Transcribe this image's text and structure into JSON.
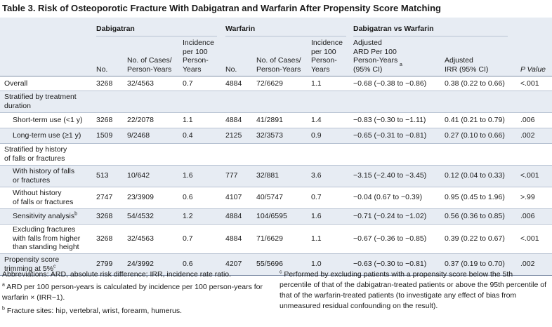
{
  "title": "Table 3. Risk of Osteoporotic Fracture With Dabigatran and Warfarin After Propensity Score Matching",
  "groups": {
    "dabigatran": "Dabigatran",
    "warfarin": "Warfarin",
    "comparison": "Dabigatran vs Warfarin"
  },
  "columns": {
    "no": "No.",
    "cases": "No. of Cases/\nPerson-Years",
    "incidence": "Incidence\nper 100\nPerson-\nYears",
    "ard": "Adjusted\nARD Per 100\nPerson-Years\n(95% CI)",
    "ard_sup": "a",
    "irr": "Adjusted\nIRR (95% CI)",
    "p_value": "P Value"
  },
  "rows": [
    {
      "kind": "data",
      "label": "Overall",
      "d_no": "3268",
      "d_cases": "32/4563",
      "d_inc": "0.7",
      "w_no": "4884",
      "w_cases": "72/6629",
      "w_inc": "1.1",
      "ard": "−0.68 (−0.38 to −0.86)",
      "irr": "0.38 (0.22 to 0.66)",
      "p": "<.001"
    },
    {
      "kind": "section",
      "label": "Stratified by treatment\nduration"
    },
    {
      "kind": "data",
      "indent": true,
      "label": "Short-term use (<1 y)",
      "d_no": "3268",
      "d_cases": "22/2078",
      "d_inc": "1.1",
      "w_no": "4884",
      "w_cases": "41/2891",
      "w_inc": "1.4",
      "ard": "−0.83 (−0.30 to −1.11)",
      "irr": "0.41 (0.21 to 0.79)",
      "p": ".006"
    },
    {
      "kind": "data",
      "indent": true,
      "label": "Long-term use (≥1 y)",
      "d_no": "1509",
      "d_cases": "9/2468",
      "d_inc": "0.4",
      "w_no": "2125",
      "w_cases": "32/3573",
      "w_inc": "0.9",
      "ard": "−0.65 (−0.31 to −0.81)",
      "irr": "0.27 (0.10 to 0.66)",
      "p": ".002"
    },
    {
      "kind": "section",
      "label": "Stratified by history\nof falls or fractures"
    },
    {
      "kind": "data",
      "indent": true,
      "label": "With history of falls\nor fractures",
      "d_no": "513",
      "d_cases": "10/642",
      "d_inc": "1.6",
      "w_no": "777",
      "w_cases": "32/881",
      "w_inc": "3.6",
      "ard": "−3.15 (−2.40 to −3.45)",
      "irr": "0.12 (0.04 to 0.33)",
      "p": "<.001"
    },
    {
      "kind": "data",
      "indent": true,
      "label": "Without history\nof falls or fractures",
      "d_no": "2747",
      "d_cases": "23/3909",
      "d_inc": "0.6",
      "w_no": "4107",
      "w_cases": "40/5747",
      "w_inc": "0.7",
      "ard": "−0.04 (0.67 to −0.39)",
      "irr": "0.95 (0.45 to 1.96)",
      "p": ">.99"
    },
    {
      "kind": "data",
      "indent": true,
      "label": "Sensitivity analysis",
      "sup": "b",
      "d_no": "3268",
      "d_cases": "54/4532",
      "d_inc": "1.2",
      "w_no": "4884",
      "w_cases": "104/6595",
      "w_inc": "1.6",
      "ard": "−0.71 (−0.24 to −1.02)",
      "irr": "0.56 (0.36 to 0.85)",
      "p": ".006"
    },
    {
      "kind": "data",
      "indent": true,
      "label": "Excluding fractures\nwith falls from higher\nthan standing height",
      "d_no": "3268",
      "d_cases": "32/4563",
      "d_inc": "0.7",
      "w_no": "4884",
      "w_cases": "71/6629",
      "w_inc": "1.1",
      "ard": "−0.67 (−0.36 to −0.85)",
      "irr": "0.39 (0.22 to 0.67)",
      "p": "<.001"
    },
    {
      "kind": "data",
      "label": "Propensity score\ntrimming at 5%",
      "sup": "c",
      "d_no": "2799",
      "d_cases": "24/3992",
      "d_inc": "0.6",
      "w_no": "4207",
      "w_cases": "55/5696",
      "w_inc": "1.0",
      "ard": "−0.63 (−0.30 to −0.81)",
      "irr": "0.37 (0.19 to 0.70)",
      "p": ".002"
    }
  ],
  "footnotes": {
    "abbreviations": "Abbreviations: ARD, absolute risk difference; IRR, incidence rate ratio.",
    "a_mark": "a",
    "a_text": "ARD per 100 person-years is calculated by incidence per 100 person-years for warfarin × (IRR−1).",
    "b_mark": "b",
    "b_text": "Fracture sites: hip, vertebral, wrist, forearm, humerus.",
    "c_mark": "c",
    "c_text": "Performed by excluding patients with a propensity score below the 5th percentile of that of the dabigatran-treated patients or above the 95th percentile of that of the warfarin-treated patients (to investigate any effect of bias from unmeasured residual confounding on the result)."
  }
}
